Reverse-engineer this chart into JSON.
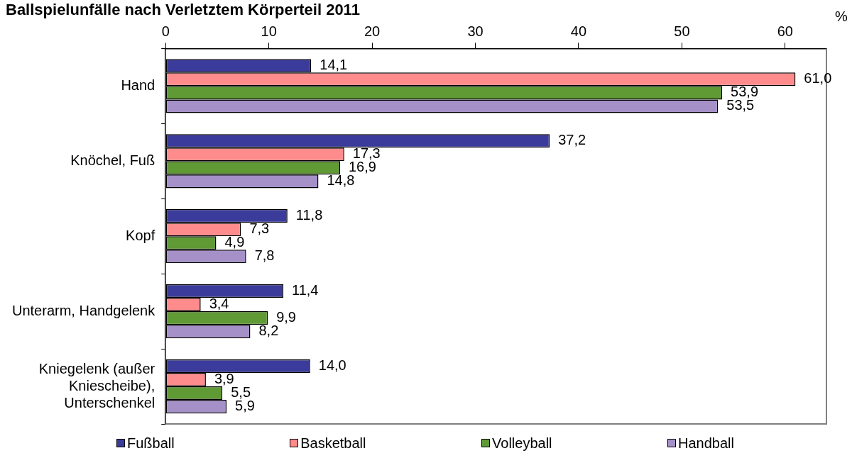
{
  "chart_data": {
    "type": "bar",
    "orientation": "horizontal",
    "title": "Ballspielunfälle nach Verletztem Körperteil 2011",
    "xlabel": "%",
    "categories": [
      "Hand",
      "Knöchel, Fuß",
      "Kopf",
      "Unterarm, Handgelenk",
      "Kniegelenk (außer Kniescheibe), Unterschenkel"
    ],
    "series": [
      {
        "name": "Fußball",
        "color": "#3b3b9c",
        "values": [
          14.1,
          37.2,
          11.8,
          11.4,
          14.0
        ],
        "value_labels": [
          "14,1",
          "37,2",
          "11,8",
          "11,4",
          "14,0"
        ]
      },
      {
        "name": "Basketball",
        "color": "#ff8c8c",
        "values": [
          61.0,
          17.3,
          7.3,
          3.4,
          3.9
        ],
        "value_labels": [
          "61,0",
          "17,3",
          "7,3",
          "3,4",
          "3,9"
        ]
      },
      {
        "name": "Volleyball",
        "color": "#5f9a35",
        "values": [
          53.9,
          16.9,
          4.9,
          9.9,
          5.5
        ],
        "value_labels": [
          "53,9",
          "16,9",
          "4,9",
          "9,9",
          "5,5"
        ]
      },
      {
        "name": "Handball",
        "color": "#a590c8",
        "values": [
          53.5,
          14.8,
          7.8,
          8.2,
          5.9
        ],
        "value_labels": [
          "53,5",
          "14,8",
          "7,8",
          "8,2",
          "5,9"
        ]
      }
    ],
    "xlim": [
      0,
      64
    ],
    "xticks": [
      0,
      10,
      20,
      30,
      40,
      50,
      60
    ],
    "legend": "bottom"
  }
}
